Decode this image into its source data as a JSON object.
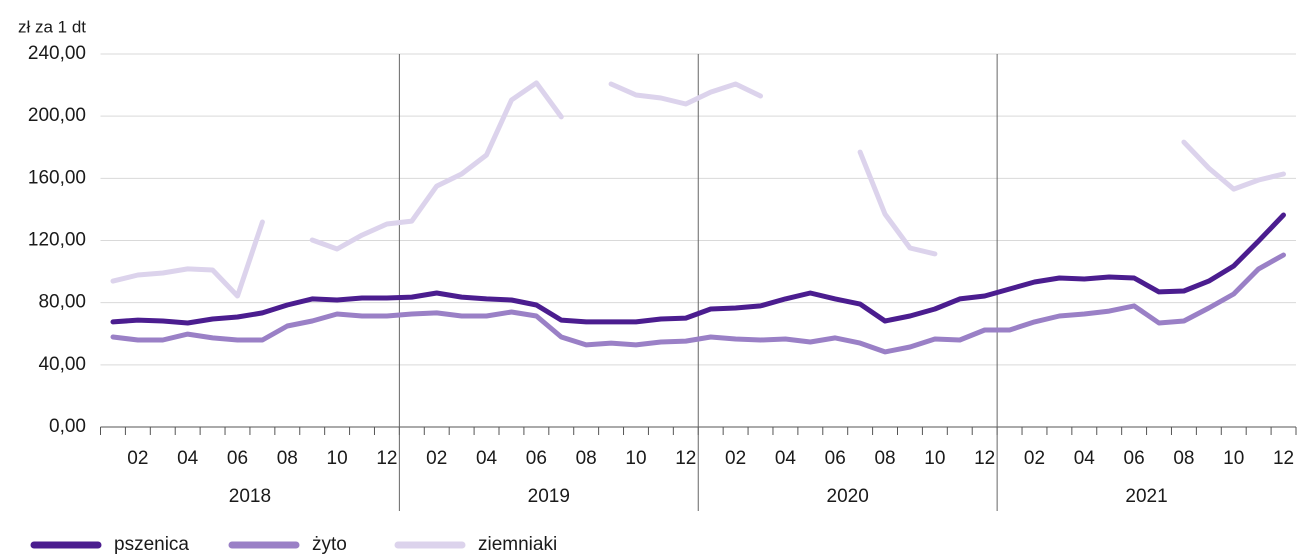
{
  "chart_data": {
    "type": "line",
    "y_axis_label": "zł za 1 dt",
    "categories": [
      null,
      "02",
      null,
      "04",
      null,
      "06",
      null,
      "08",
      null,
      "10",
      null,
      "12",
      null,
      "02",
      null,
      "04",
      null,
      "06",
      null,
      "08",
      null,
      "10",
      null,
      "12",
      null,
      "02",
      null,
      "04",
      null,
      "06",
      null,
      "08",
      null,
      "10",
      null,
      "12",
      null,
      "02",
      null,
      "04",
      null,
      "06",
      null,
      "08",
      null,
      "10",
      null,
      "12"
    ],
    "years": [
      "2018",
      "2019",
      "2020",
      "2021"
    ],
    "series": [
      {
        "name": "pszenica",
        "color": "#4b1d8f",
        "width": 5,
        "values": [
          67.6,
          68.8,
          68.2,
          66.9,
          69.5,
          70.8,
          73.4,
          78.5,
          82.4,
          81.7,
          83,
          83,
          83.6,
          86.2,
          83.6,
          82.4,
          81.7,
          78.5,
          68.8,
          67.6,
          67.6,
          67.6,
          69.5,
          70.1,
          75.9,
          76.6,
          77.9,
          82.4,
          86.2,
          82.4,
          79.1,
          68.2,
          71.4,
          75.9,
          82.4,
          84.3,
          88.8,
          93.3,
          95.9,
          95.2,
          96.5,
          95.9,
          86.9,
          87.5,
          93.9,
          103.6,
          119.7,
          136.4
        ]
      },
      {
        "name": "żyto",
        "color": "#9a80c6",
        "width": 5,
        "values": [
          57.9,
          56,
          56,
          59.8,
          57.3,
          56,
          56,
          65,
          68.2,
          72.7,
          71.4,
          71.4,
          72.7,
          73.4,
          71.4,
          71.4,
          74,
          71.4,
          57.9,
          52.8,
          54,
          52.8,
          54.7,
          55.3,
          57.9,
          56.6,
          56,
          56.6,
          54.7,
          57.3,
          54,
          48.3,
          51.5,
          56.6,
          56,
          62.4,
          62.4,
          67.6,
          71.4,
          72.7,
          74.6,
          77.9,
          66.9,
          68.2,
          76.6,
          85.6,
          101.7,
          110.7
        ]
      },
      {
        "name": "ziemniaki",
        "color": "#dcd3ec",
        "width": 5,
        "values": [
          93.9,
          97.8,
          99.1,
          101.7,
          101,
          84.3,
          131.9,
          null,
          120.3,
          114.5,
          123.5,
          130.6,
          132.5,
          155,
          162.8,
          175,
          210.4,
          221.4,
          199.5,
          null,
          220.7,
          213.6,
          211.7,
          207.8,
          215.5,
          220.7,
          213,
          null,
          null,
          null,
          176.9,
          137,
          115.2,
          111.4,
          null,
          null,
          null,
          null,
          null,
          null,
          null,
          null,
          null,
          183.3,
          166.6,
          153.1,
          158.9,
          162.8
        ]
      }
    ],
    "ylim": [
      0,
      240
    ],
    "yticks": [
      {
        "value": 0,
        "label": "0,00"
      },
      {
        "value": 40,
        "label": "40,00"
      },
      {
        "value": 80,
        "label": "80,00"
      },
      {
        "value": 120,
        "label": "120,00"
      },
      {
        "value": 160,
        "label": "160,00"
      },
      {
        "value": 200,
        "label": "200,00"
      },
      {
        "value": 240,
        "label": "240,00"
      }
    ],
    "grid": true,
    "legend": "bottom-left"
  }
}
